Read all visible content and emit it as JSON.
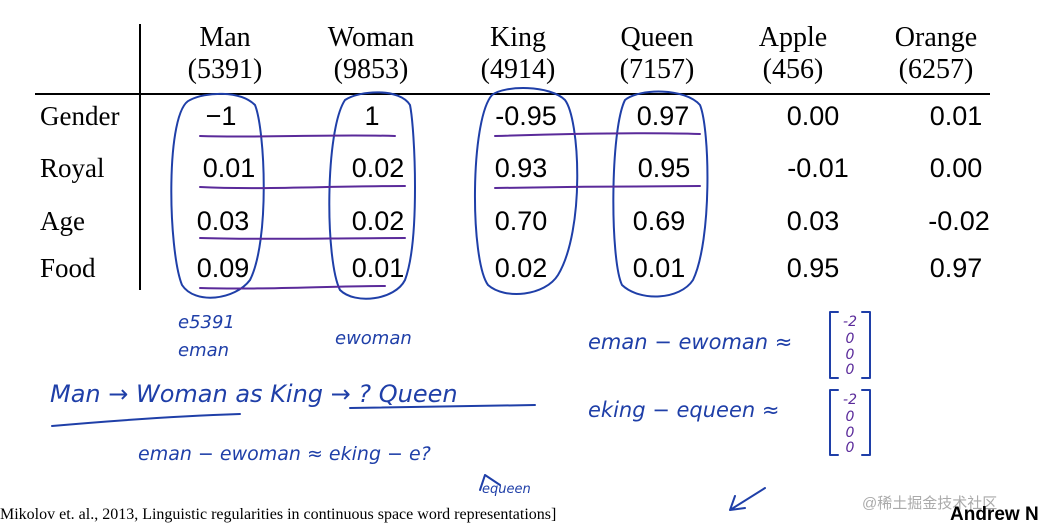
{
  "table": {
    "columns": [
      {
        "word": "Man",
        "index": "(5391)"
      },
      {
        "word": "Woman",
        "index": "(9853)"
      },
      {
        "word": "King",
        "index": "(4914)"
      },
      {
        "word": "Queen",
        "index": "(7157)"
      },
      {
        "word": "Apple",
        "index": "(456)"
      },
      {
        "word": "Orange",
        "index": "(6257)"
      }
    ],
    "rows": [
      {
        "label": "Gender",
        "values": [
          "−1",
          "1",
          "-0.95",
          "0.97",
          "0.00",
          "0.01"
        ]
      },
      {
        "label": "Royal",
        "values": [
          "0.01",
          "0.02",
          "0.93",
          "0.95",
          "-0.01",
          "0.00"
        ]
      },
      {
        "label": "Age",
        "values": [
          "0.03",
          "0.02",
          "0.70",
          "0.69",
          "0.03",
          "-0.02"
        ]
      },
      {
        "label": "Food",
        "values": [
          "0.09",
          "0.01",
          "0.02",
          "0.01",
          "0.95",
          "0.97"
        ]
      }
    ]
  },
  "annotations": {
    "e_5391": "e5391",
    "e_man": "eman",
    "e_woman": "ewoman",
    "diff_man_woman": "eman − ewoman ≈",
    "vector_1": [
      "-2",
      "0",
      "0",
      "0"
    ],
    "analogy": "Man → Woman  as  King → ? Queen",
    "diff_king_queen": "eking − equeen ≈",
    "vector_2": [
      "-2",
      "0",
      "0",
      "0"
    ],
    "equation": "eman − ewoman ≈ eking − e?",
    "queen_note": "equeen"
  },
  "footer": {
    "citation": "Mikolov et. al., 2013, Linguistic regularities in continuous space word representations]",
    "author": "Andrew N",
    "watermark": "@稀土掘金技术社区"
  },
  "colors": {
    "ink_blue": "#1f3fa8",
    "ink_purple": "#5a2a9a"
  }
}
